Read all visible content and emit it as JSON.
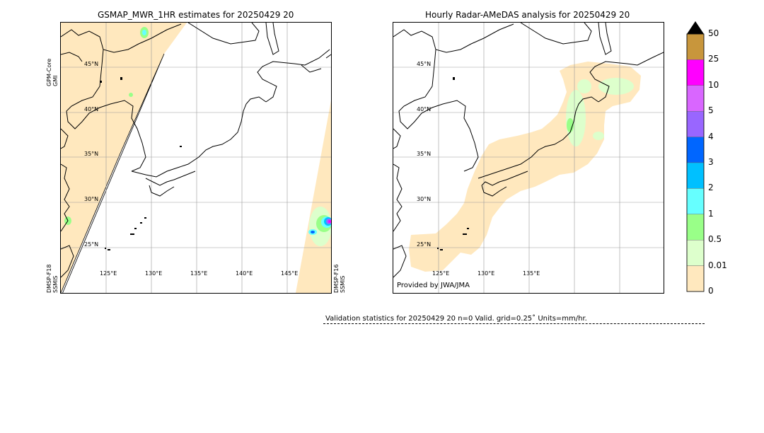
{
  "left_map": {
    "title": "GSMAP_MWR_1HR estimates for 20250429 20",
    "lat_labels": [
      "45°N",
      "40°N",
      "35°N",
      "30°N",
      "25°N"
    ],
    "lon_labels": [
      "125°E",
      "130°E",
      "135°E",
      "140°E",
      "145°E"
    ],
    "sensor_top_left": [
      "GPM-Core",
      "GMI"
    ],
    "sensor_bottom_left": [
      "DMSP-F18",
      "SSMIS"
    ],
    "sensor_bottom_right": [
      "DMSP-F16",
      "SSMIS"
    ]
  },
  "right_map": {
    "title": "Hourly Radar-AMeDAS analysis for 20250429 20",
    "lat_labels": [
      "45°N",
      "40°N",
      "35°N",
      "30°N",
      "25°N"
    ],
    "lon_labels": [
      "125°E",
      "130°E",
      "135°E"
    ],
    "credit": "Provided by JWA/JMA"
  },
  "colorbar": {
    "labels": [
      "50",
      "25",
      "10",
      "5",
      "4",
      "3",
      "2",
      "1",
      "0.5",
      "0.01",
      "0"
    ],
    "colors": [
      "#c8963c",
      "#ff00ff",
      "#d966ff",
      "#9966ff",
      "#0066ff",
      "#00c0ff",
      "#66ffff",
      "#99ff88",
      "#ddffcc",
      "#ffe8be"
    ],
    "extend_color": "#000000"
  },
  "validation": {
    "text": "Validation statistics for 20250429 20  n=0 Valid. grid=0.25˚ Units=mm/hr."
  }
}
